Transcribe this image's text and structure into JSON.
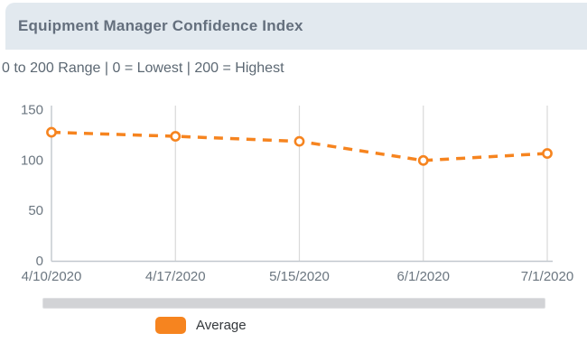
{
  "header": {
    "title": "Equipment Manager Confidence Index"
  },
  "subtitle": "0 to 200 Range | 0 = Lowest | 200 = Highest",
  "chart_data": {
    "type": "line",
    "title": "Equipment Manager Confidence Index",
    "x": [
      "4/10/2020",
      "4/17/2020",
      "5/15/2020",
      "6/1/2020",
      "7/1/2020"
    ],
    "series": [
      {
        "name": "Average",
        "values": [
          128,
          124,
          119,
          100,
          107
        ]
      }
    ],
    "xlabel": "",
    "ylabel": "",
    "ylim": [
      0,
      150
    ],
    "yticks": [
      0,
      50,
      100,
      150
    ],
    "grid": "vertical",
    "line_style": "dashed",
    "marker": "open-circle",
    "legend_position": "bottom-left",
    "colors": {
      "line": "#f6841f",
      "marker_fill": "#ffffff"
    }
  },
  "legend": {
    "items": [
      {
        "label": "Average",
        "color": "#f6841f"
      }
    ]
  },
  "colors": {
    "accent_orange": "#f6841f",
    "header_background": "#e2e9ef",
    "grid_line": "#d9d9d9",
    "axis_line": "#c2c8ce",
    "tick_text": "#6b7680"
  }
}
